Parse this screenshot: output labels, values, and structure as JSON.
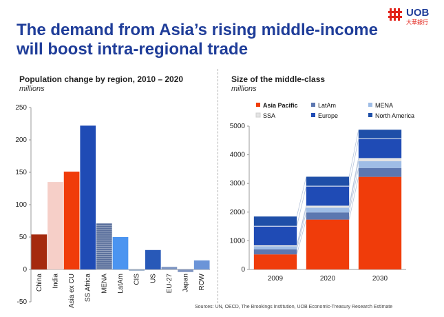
{
  "header": {
    "title_line1": "The demand from Asia’s rising middle-income",
    "title_line2": "will boost intra-regional trade",
    "logo_text": "UOB",
    "logo_sub": "大華銀行"
  },
  "colors": {
    "title": "#1f3d99",
    "asia_pacific": "#f03c0a",
    "latam": "#5c77b0",
    "mena": "#9fbde6",
    "ssa": "#dcdcdc",
    "europe": "#1f4bb5",
    "north_america": "#1f4fa8"
  },
  "chart_data": [
    {
      "type": "bar",
      "title": "Population change by region, 2010 – 2020",
      "subtitle": "millions",
      "categories": [
        "China",
        "India",
        "Asia ex CU",
        "SS Africa",
        "MENA",
        "LatAm",
        "CIS",
        "US",
        "EU-27",
        "Japan",
        "ROW"
      ],
      "values": [
        54,
        135,
        151,
        222,
        71,
        50,
        -2,
        30,
        4,
        -4,
        14
      ],
      "bar_colors": [
        "#a52a0e",
        "#f6cfc8",
        "#f03c0a",
        "#1f4bb5",
        "#5a6f9c",
        "#4b94f0",
        "#9aaec8",
        "#2859b8",
        "#7e95c2",
        "#7f94c0",
        "#6b94d8"
      ],
      "ylim": [
        -50,
        250
      ],
      "yticks": [
        -50,
        0,
        50,
        100,
        150,
        200,
        250
      ],
      "grid": false
    },
    {
      "type": "bar",
      "stacked": true,
      "title": "Size of the middle-class",
      "subtitle": "millions",
      "categories": [
        "2009",
        "2020",
        "2030"
      ],
      "series": [
        {
          "name": "Asia Pacific",
          "values": [
            525,
            1740,
            3230
          ],
          "color": "#f03c0a"
        },
        {
          "name": "LatAm",
          "values": [
            180,
            250,
            310
          ],
          "color": "#5c77b0"
        },
        {
          "name": "MENA",
          "values": [
            105,
            165,
            235
          ],
          "color": "#9fbde6"
        },
        {
          "name": "SSA",
          "values": [
            32,
            70,
            110
          ],
          "color": "#e4e4e4"
        },
        {
          "name": "Europe",
          "values": [
            665,
            680,
            670
          ],
          "color": "#1f4bb5"
        },
        {
          "name": "North America",
          "values": [
            340,
            330,
            320
          ],
          "color": "#1f4fa8"
        }
      ],
      "ylim": [
        0,
        5000
      ],
      "yticks": [
        0,
        1000,
        2000,
        3000,
        4000,
        5000
      ],
      "legend_position": "top",
      "grid": false
    }
  ],
  "sources": "Sources: UN, OECD, The Brookings Institution, UOB Economic-Treasury Research Estimate"
}
